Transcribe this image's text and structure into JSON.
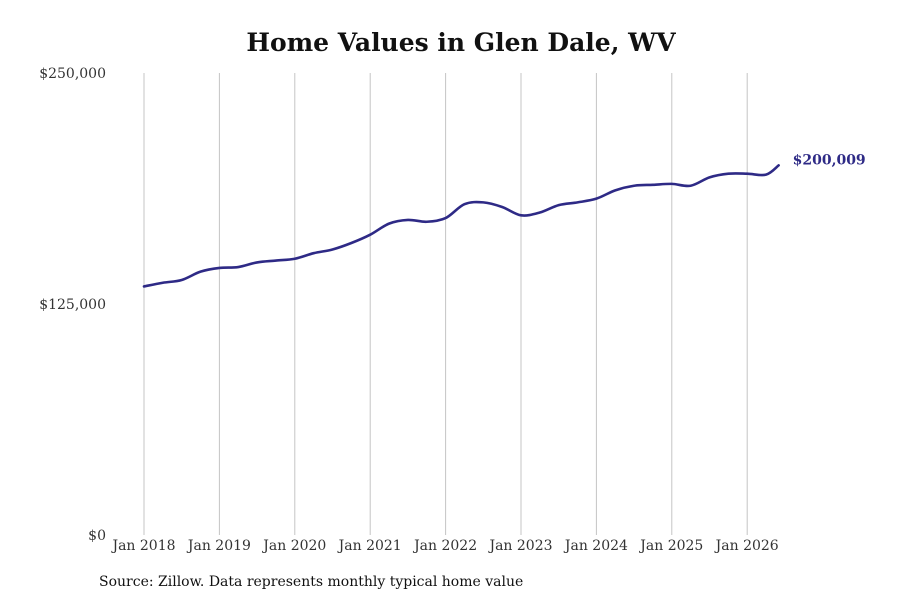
{
  "chart_data": {
    "type": "line",
    "title": "Home Values in Glen Dale, WV",
    "xlabel": "",
    "ylabel": "",
    "ylim": [
      0,
      250000
    ],
    "y_ticks": [
      "$250,000",
      "$125,000",
      "$0"
    ],
    "y_tick_values": [
      250000,
      125000,
      0
    ],
    "x_ticks": [
      "Jan 2018",
      "Jan 2019",
      "Jan 2020",
      "Jan 2021",
      "Jan 2022",
      "Jan 2023",
      "Jan 2024",
      "Jan 2025",
      "Jan 2026"
    ],
    "x_tick_values": [
      "2018-01",
      "2019-01",
      "2020-01",
      "2021-01",
      "2022-01",
      "2023-01",
      "2024-01",
      "2025-01",
      "2026-01"
    ],
    "grid": "vertical",
    "line_color": "#2e2a86",
    "series": [
      {
        "x": [
          "2018-01",
          "2018-04",
          "2018-07",
          "2018-10",
          "2019-01",
          "2019-04",
          "2019-07",
          "2019-10",
          "2020-01",
          "2020-04",
          "2020-07",
          "2020-10",
          "2021-01",
          "2021-04",
          "2021-07",
          "2021-10",
          "2022-01",
          "2022-04",
          "2022-07",
          "2022-10",
          "2023-01",
          "2023-04",
          "2023-07",
          "2023-10",
          "2024-01",
          "2024-04",
          "2024-07",
          "2024-10",
          "2025-01",
          "2025-04",
          "2025-07",
          "2025-10",
          "2026-01",
          "2026-04",
          "2026-06"
        ],
        "values": [
          134500,
          136500,
          138000,
          142500,
          144500,
          145000,
          147500,
          148500,
          149500,
          152500,
          154500,
          158000,
          162500,
          168500,
          170500,
          169500,
          171500,
          179000,
          180000,
          177500,
          173000,
          174500,
          178500,
          180000,
          182000,
          186500,
          189000,
          189500,
          190000,
          189000,
          193500,
          195500,
          195500,
          195000,
          200009
        ]
      }
    ],
    "end_label": "$200,009"
  },
  "source": "Source: Zillow. Data represents monthly typical home value"
}
